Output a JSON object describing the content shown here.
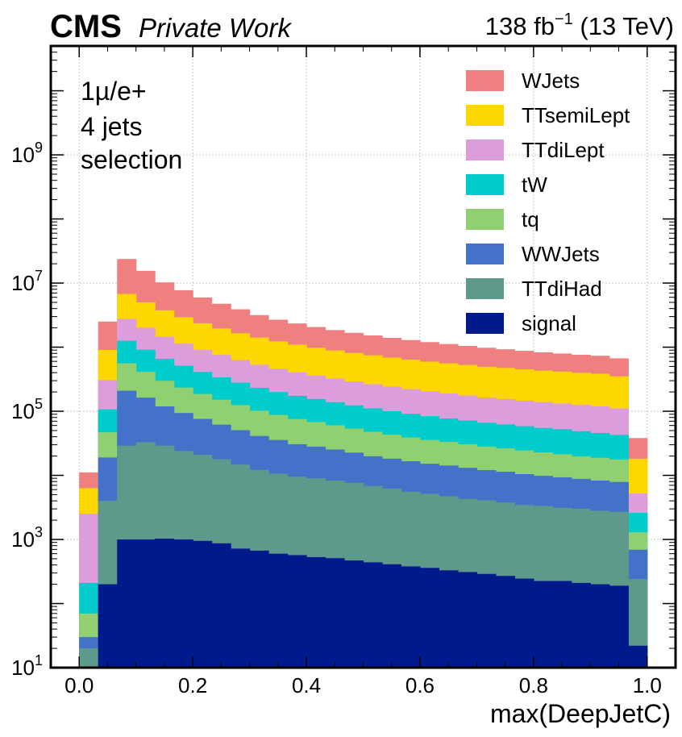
{
  "header": {
    "experiment": "CMS",
    "status": "Private Work",
    "lumi": "138 fb",
    "lumi_exp": "−1",
    "energy": " (13 TeV)"
  },
  "annotation": [
    "1µ/e+",
    "4 jets",
    "selection"
  ],
  "chart_data": {
    "type": "bar",
    "stacked": true,
    "title": "",
    "xlabel": "max(DeepJetC)",
    "ylabel": "",
    "xlim": [
      -0.05,
      1.05
    ],
    "ylim": [
      10,
      50000000000
    ],
    "yscale": "log",
    "grid": true,
    "legend_position": "top-right",
    "x_ticks": [
      "0.0",
      "0.2",
      "0.4",
      "0.6",
      "0.8",
      "1.0"
    ],
    "y_tick_exponents": [
      "1",
      "3",
      "5",
      "7",
      "9"
    ],
    "bin_edges": [
      0.0,
      0.0333,
      0.0667,
      0.1,
      0.1333,
      0.1667,
      0.2,
      0.2333,
      0.2667,
      0.3,
      0.3333,
      0.3667,
      0.4,
      0.4333,
      0.4667,
      0.5,
      0.5333,
      0.5667,
      0.6,
      0.6333,
      0.6667,
      0.7,
      0.7333,
      0.7667,
      0.8,
      0.8333,
      0.8667,
      0.9,
      0.9333,
      0.9667,
      1.0
    ],
    "series": [
      {
        "name": "signal",
        "color": "#001a8c",
        "values": [
          10,
          200,
          1000,
          1000,
          1030,
          1000,
          950,
          870,
          720,
          670,
          600,
          570,
          530,
          510,
          470,
          440,
          410,
          380,
          360,
          330,
          310,
          290,
          270,
          245,
          225,
          225,
          210,
          200,
          190,
          22
        ]
      },
      {
        "name": "TTdiHad",
        "color": "#5e9a8b",
        "values": [
          10,
          3800,
          28000,
          32000,
          28000,
          23000,
          20000,
          17000,
          14000,
          11500,
          10000,
          9000,
          8500,
          7800,
          7200,
          6400,
          5800,
          5200,
          4800,
          4400,
          4000,
          3800,
          3500,
          3200,
          3100,
          2900,
          2800,
          2600,
          2500,
          220
        ]
      },
      {
        "name": "WWJets",
        "color": "#4472c9",
        "values": [
          10,
          15000,
          180000,
          130000,
          90000,
          70000,
          55000,
          44000,
          36000,
          29000,
          25000,
          21000,
          19000,
          17000,
          15000,
          13000,
          12000,
          11000,
          10000,
          9500,
          8800,
          8000,
          7600,
          7000,
          6500,
          6200,
          5800,
          5500,
          5200,
          450
        ]
      },
      {
        "name": "tq",
        "color": "#90d070",
        "values": [
          40,
          28000,
          350000,
          250000,
          180000,
          140000,
          110000,
          90000,
          74000,
          61000,
          52000,
          45000,
          40000,
          35000,
          31000,
          28000,
          25000,
          22500,
          20500,
          19000,
          17500,
          16000,
          15000,
          14000,
          13000,
          12000,
          11000,
          10500,
          9800,
          600
        ]
      },
      {
        "name": "tW",
        "color": "#00cccc",
        "values": [
          140,
          60000,
          700000,
          500000,
          360000,
          280000,
          225000,
          185000,
          155000,
          130000,
          112000,
          98000,
          87000,
          78000,
          70000,
          63000,
          57000,
          52000,
          48000,
          44000,
          41000,
          38000,
          36000,
          34000,
          32000,
          31000,
          29000,
          27000,
          25000,
          1300
        ]
      },
      {
        "name": "TTdiLept",
        "color": "#dc9ddc",
        "values": [
          2300,
          200000,
          1500000,
          1100000,
          800000,
          620000,
          500000,
          420000,
          350000,
          300000,
          260000,
          230000,
          205000,
          185000,
          168000,
          154000,
          142000,
          130000,
          120000,
          112000,
          105000,
          98000,
          93000,
          88000,
          84000,
          80000,
          77000,
          74000,
          68000,
          2600
        ]
      },
      {
        "name": "TTsemiLept",
        "color": "#ffd700",
        "values": [
          3800,
          600000,
          4000000,
          3000000,
          2300000,
          1800000,
          1450000,
          1200000,
          1020000,
          880000,
          770000,
          690000,
          620000,
          565000,
          520000,
          480000,
          445000,
          415000,
          390000,
          370000,
          350000,
          330000,
          318000,
          305000,
          292000,
          283000,
          272000,
          265000,
          240000,
          13000
        ]
      },
      {
        "name": "WJets",
        "color": "#f08080",
        "values": [
          4800,
          1600000,
          17000000,
          10500000,
          6500000,
          4800000,
          3600000,
          2800000,
          2250000,
          1750000,
          1450000,
          1250000,
          1080000,
          960000,
          860000,
          780000,
          710000,
          655000,
          605000,
          560000,
          520000,
          485000,
          455000,
          425000,
          400000,
          380000,
          362000,
          350000,
          318000,
          20000
        ]
      }
    ],
    "legend_order": [
      "WJets",
      "TTsemiLept",
      "TTdiLept",
      "tW",
      "tq",
      "WWJets",
      "TTdiHad",
      "signal"
    ]
  }
}
